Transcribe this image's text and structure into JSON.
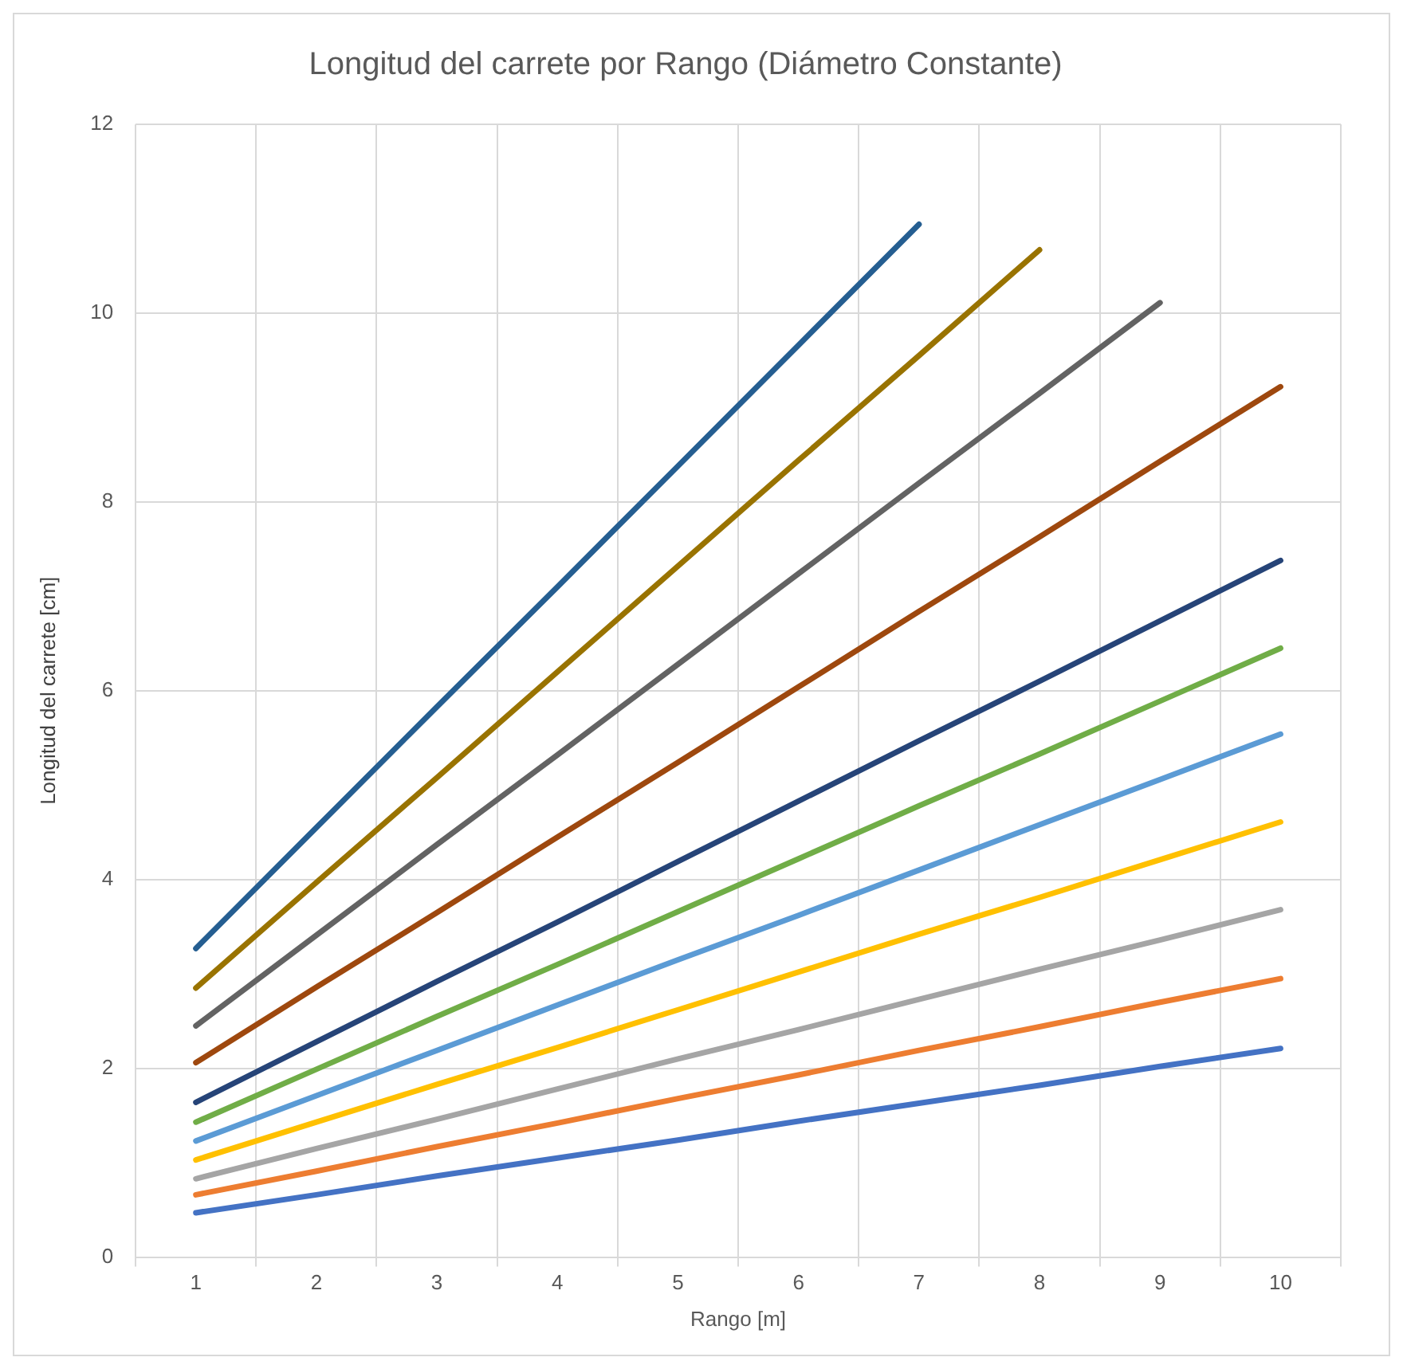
{
  "chart_data": {
    "type": "line",
    "title": "Longitud del carrete por Rango (Diámetro Constante)",
    "xlabel": "Rango [m]",
    "ylabel": "Longitud del carrete [cm]",
    "categories": [
      "1",
      "2",
      "3",
      "4",
      "5",
      "6",
      "7",
      "8",
      "9",
      "10"
    ],
    "ylim": [
      0,
      12
    ],
    "yticks": [
      0,
      2,
      4,
      6,
      8,
      10,
      12
    ],
    "grid": true,
    "legend": false,
    "marker": "none",
    "line_style": "solid",
    "series": [
      {
        "color": "#4472c4",
        "values": [
          0.47,
          0.66,
          0.86,
          1.05,
          1.24,
          1.44,
          1.63,
          1.82,
          2.02,
          2.21
        ]
      },
      {
        "color": "#ed7d31",
        "values": [
          0.66,
          0.91,
          1.17,
          1.42,
          1.68,
          1.93,
          2.19,
          2.44,
          2.7,
          2.95
        ]
      },
      {
        "color": "#a5a5a5",
        "values": [
          0.83,
          1.15,
          1.46,
          1.78,
          2.1,
          2.41,
          2.73,
          3.05,
          3.36,
          3.68
        ]
      },
      {
        "color": "#ffc000",
        "values": [
          1.03,
          1.43,
          1.83,
          2.22,
          2.62,
          3.02,
          3.42,
          3.81,
          4.21,
          4.61
        ]
      },
      {
        "color": "#5b9bd5",
        "values": [
          1.23,
          1.71,
          2.19,
          2.67,
          3.15,
          3.62,
          4.1,
          4.58,
          5.06,
          5.54
        ]
      },
      {
        "color": "#70ad47",
        "values": [
          1.43,
          1.99,
          2.55,
          3.1,
          3.66,
          4.22,
          4.78,
          5.33,
          5.89,
          6.45
        ]
      },
      {
        "color": "#264478",
        "values": [
          1.64,
          2.28,
          2.92,
          3.55,
          4.19,
          4.83,
          5.47,
          6.1,
          6.74,
          7.38
        ]
      },
      {
        "color": "#9e480e",
        "values": [
          2.06,
          2.86,
          3.65,
          4.45,
          5.24,
          6.04,
          6.84,
          7.63,
          8.43,
          9.22
        ]
      },
      {
        "color": "#636363",
        "values": [
          2.45,
          3.41,
          4.37,
          5.32,
          6.28,
          7.24,
          8.2,
          9.15,
          10.11,
          null
        ]
      },
      {
        "color": "#997300",
        "values": [
          2.85,
          3.97,
          5.08,
          6.2,
          7.32,
          8.44,
          9.55,
          10.67,
          null,
          null
        ]
      },
      {
        "color": "#255e91",
        "values": [
          3.27,
          4.55,
          5.83,
          7.1,
          8.38,
          9.66,
          10.94,
          null,
          null,
          null
        ]
      }
    ]
  }
}
